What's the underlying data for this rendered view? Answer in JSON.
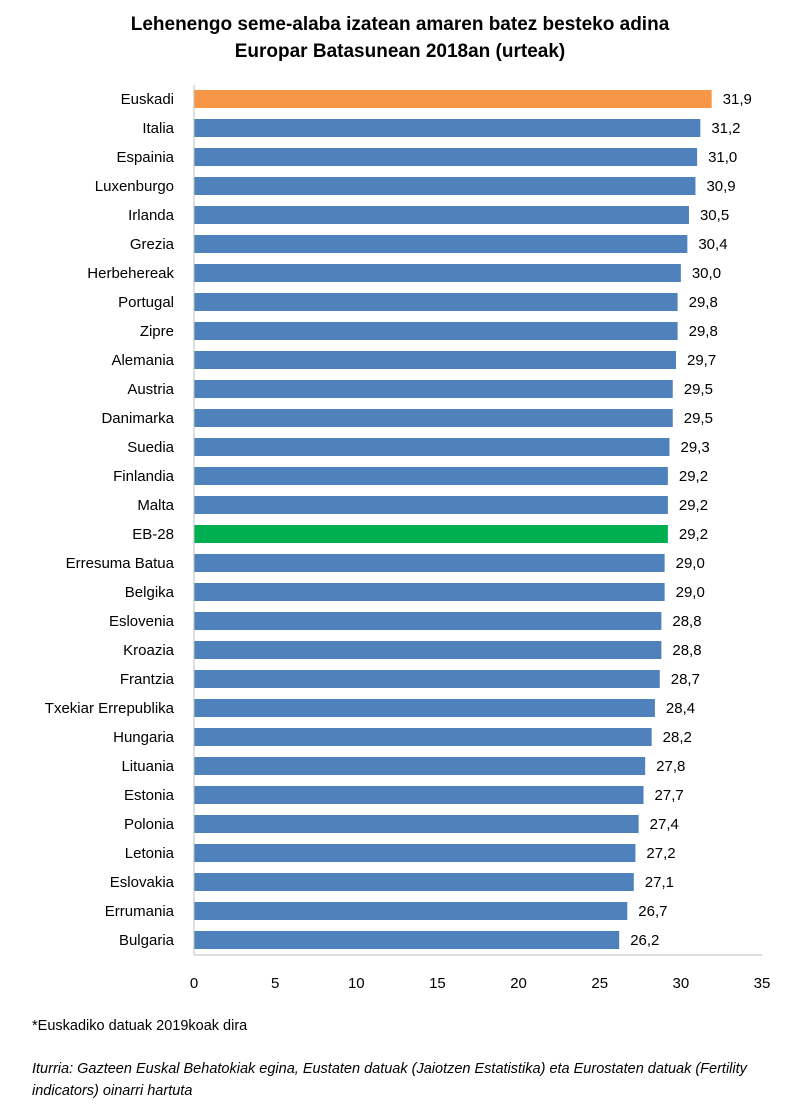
{
  "chart_data": {
    "type": "bar",
    "orientation": "horizontal",
    "title": [
      "Lehenengo seme-alaba izatean amaren batez besteko adina",
      "Europar Batasunean 2018an (urteak)"
    ],
    "categories": [
      "Euskadi",
      "Italia",
      "Espainia",
      "Luxenburgo",
      "Irlanda",
      "Grezia",
      "Herbehereak",
      "Portugal",
      "Zipre",
      "Alemania",
      "Austria",
      "Danimarka",
      "Suedia",
      "Finlandia",
      "Malta",
      "EB-28",
      "Erresuma Batua",
      "Belgika",
      "Eslovenia",
      "Kroazia",
      "Frantzia",
      "Txekiar Errepublika",
      "Hungaria",
      "Lituania",
      "Estonia",
      "Polonia",
      "Letonia",
      "Eslovakia",
      "Errumania",
      "Bulgaria"
    ],
    "values": [
      31.9,
      31.2,
      31.0,
      30.9,
      30.5,
      30.4,
      30.0,
      29.8,
      29.8,
      29.7,
      29.5,
      29.5,
      29.3,
      29.2,
      29.2,
      29.2,
      29.0,
      29.0,
      28.8,
      28.8,
      28.7,
      28.4,
      28.2,
      27.8,
      27.7,
      27.4,
      27.2,
      27.1,
      26.7,
      26.2
    ],
    "value_labels": [
      "31,9",
      "31,2",
      "31,0",
      "30,9",
      "30,5",
      "30,4",
      "30,0",
      "29,8",
      "29,8",
      "29,7",
      "29,5",
      "29,5",
      "29,3",
      "29,2",
      "29,2",
      "29,2",
      "29,0",
      "29,0",
      "28,8",
      "28,8",
      "28,7",
      "28,4",
      "28,2",
      "27,8",
      "27,7",
      "27,4",
      "27,2",
      "27,1",
      "26,7",
      "26,2"
    ],
    "xlim": [
      0,
      35
    ],
    "xticks": [
      "0",
      "5",
      "10",
      "15",
      "20",
      "25",
      "30",
      "35"
    ],
    "grid": false,
    "legend": "none",
    "colors": {
      "default": "#4f81bd",
      "Euskadi": "#f79646",
      "EB-28": "#00b050"
    }
  },
  "notes": {
    "footnote": "*Euskadiko datuak 2019koak dira",
    "source": "Iturria: Gazteen Euskal Behatokiak egina, Eustaten datuak (Jaiotzen Estatistika) eta Eurostaten datuak (Fertility indicators) oinarri hartuta"
  }
}
